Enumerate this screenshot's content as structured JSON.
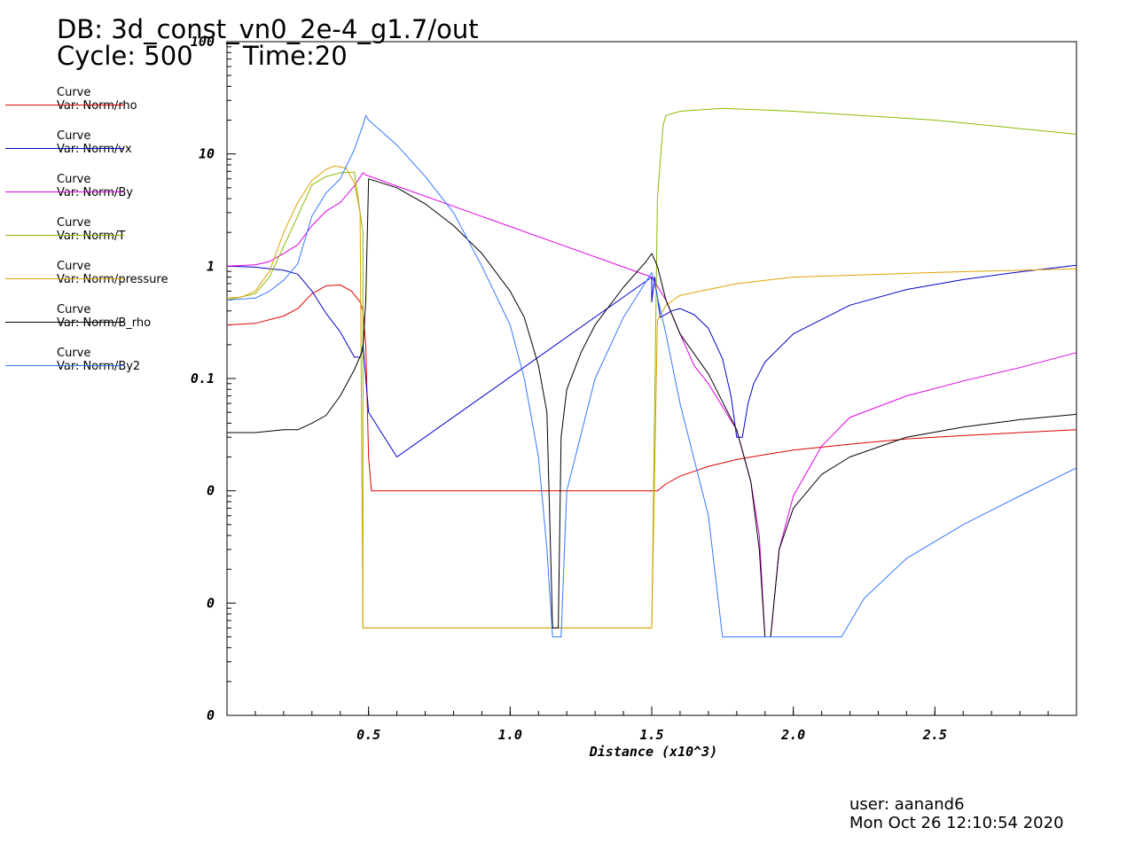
{
  "header": {
    "db_line": "DB: 3d_const_vn0_2e-4_g1.7/out",
    "cycle_line": "Cycle: 500",
    "time_line": "Time:20"
  },
  "footer": {
    "user": "user: aanand6",
    "date": "Mon Oct 26 12:10:54 2020"
  },
  "legend": [
    {
      "line1": "Curve",
      "line2": "Var: Norm/rho",
      "color": "#e00000"
    },
    {
      "line1": "Curve",
      "line2": "Var: Norm/vx",
      "color": "#0000cc"
    },
    {
      "line1": "Curve",
      "line2": "Var: Norm/By",
      "color": "#e000e0"
    },
    {
      "line1": "Curve",
      "line2": "Var: Norm/T",
      "color": "#88bb00"
    },
    {
      "line1": "Curve",
      "line2": "Var: Norm/pressure",
      "color": "#e0a000"
    },
    {
      "line1": "Curve",
      "line2": "Var: Norm/B_rho",
      "color": "#000000"
    },
    {
      "line1": "Curve",
      "line2": "Var: Norm/By2",
      "color": "#3377ff"
    }
  ],
  "chart_data": {
    "type": "line",
    "xlabel": "Distance (x10^3)",
    "ylabel": "",
    "xlim": [
      0,
      3.0
    ],
    "y_scale": "log",
    "xticks": [
      0.5,
      1.0,
      1.5,
      2.0,
      2.5
    ],
    "xtick_labels": [
      "0.5",
      "1.0",
      "1.5",
      "2.0",
      "2.5"
    ],
    "ytick_labels": [
      "0",
      "0",
      "0",
      "0.1",
      "1",
      "10",
      "100"
    ],
    "ytick_exponents": [
      -4,
      -3,
      -2,
      -1,
      0,
      1,
      2
    ],
    "grid": false,
    "series": [
      {
        "name": "Norm/rho",
        "color": "#e00000",
        "points": [
          [
            0,
            0.3
          ],
          [
            0.1,
            0.31
          ],
          [
            0.2,
            0.36
          ],
          [
            0.25,
            0.42
          ],
          [
            0.3,
            0.57
          ],
          [
            0.35,
            0.67
          ],
          [
            0.4,
            0.68
          ],
          [
            0.44,
            0.6
          ],
          [
            0.47,
            0.48
          ],
          [
            0.48,
            0.4
          ],
          [
            0.49,
            0.2
          ],
          [
            0.5,
            0.02
          ],
          [
            0.51,
            0.01
          ],
          [
            0.6,
            0.01
          ],
          [
            0.8,
            0.01
          ],
          [
            1.0,
            0.01
          ],
          [
            1.2,
            0.01
          ],
          [
            1.4,
            0.01
          ],
          [
            1.52,
            0.01
          ],
          [
            1.55,
            0.0115
          ],
          [
            1.6,
            0.0135
          ],
          [
            1.7,
            0.0165
          ],
          [
            1.8,
            0.019
          ],
          [
            1.9,
            0.021
          ],
          [
            2.0,
            0.023
          ],
          [
            2.2,
            0.026
          ],
          [
            2.4,
            0.029
          ],
          [
            2.6,
            0.031
          ],
          [
            2.8,
            0.033
          ],
          [
            3.0,
            0.035
          ]
        ]
      },
      {
        "name": "Norm/vx",
        "color": "#0000cc",
        "points": [
          [
            0,
            1.0
          ],
          [
            0.1,
            0.98
          ],
          [
            0.2,
            0.92
          ],
          [
            0.25,
            0.85
          ],
          [
            0.3,
            0.6
          ],
          [
            0.35,
            0.38
          ],
          [
            0.4,
            0.26
          ],
          [
            0.45,
            0.155
          ],
          [
            0.47,
            0.155
          ],
          [
            0.48,
            0.2
          ],
          [
            0.5,
            0.05
          ],
          [
            0.6,
            0.02
          ],
          [
            1.5,
            0.8
          ],
          [
            1.5,
            0.48
          ],
          [
            1.51,
            0.8
          ],
          [
            1.53,
            0.35
          ],
          [
            1.57,
            0.4
          ],
          [
            1.6,
            0.42
          ],
          [
            1.65,
            0.37
          ],
          [
            1.7,
            0.28
          ],
          [
            1.75,
            0.15
          ],
          [
            1.78,
            0.07
          ],
          [
            1.8,
            0.03
          ],
          [
            1.82,
            0.03
          ],
          [
            1.84,
            0.06
          ],
          [
            1.86,
            0.09
          ],
          [
            1.9,
            0.14
          ],
          [
            2.0,
            0.25
          ],
          [
            2.2,
            0.45
          ],
          [
            2.4,
            0.62
          ],
          [
            2.6,
            0.76
          ],
          [
            2.8,
            0.89
          ],
          [
            3.0,
            1.02
          ]
        ]
      },
      {
        "name": "Norm/By",
        "color": "#e000e0",
        "points": [
          [
            0,
            1.0
          ],
          [
            0.1,
            1.03
          ],
          [
            0.15,
            1.1
          ],
          [
            0.2,
            1.3
          ],
          [
            0.25,
            1.55
          ],
          [
            0.3,
            2.3
          ],
          [
            0.35,
            3.1
          ],
          [
            0.4,
            3.7
          ],
          [
            0.45,
            5.2
          ],
          [
            0.48,
            6.8
          ],
          [
            0.49,
            6.5
          ],
          [
            1.5,
            0.8
          ],
          [
            1.55,
            0.5
          ],
          [
            1.6,
            0.25
          ],
          [
            1.65,
            0.13
          ],
          [
            1.7,
            0.09
          ],
          [
            1.8,
            0.035
          ],
          [
            1.85,
            0.012
          ],
          [
            1.88,
            0.004
          ],
          [
            1.9,
            0.0005
          ],
          [
            1.92,
            0.0005
          ],
          [
            1.95,
            0.003
          ],
          [
            2.0,
            0.009
          ],
          [
            2.1,
            0.025
          ],
          [
            2.2,
            0.045
          ],
          [
            2.4,
            0.07
          ],
          [
            2.6,
            0.095
          ],
          [
            2.8,
            0.125
          ],
          [
            3.0,
            0.17
          ]
        ]
      },
      {
        "name": "Norm/T",
        "color": "#88bb00",
        "points": [
          [
            0,
            0.5
          ],
          [
            0.1,
            0.57
          ],
          [
            0.15,
            0.8
          ],
          [
            0.2,
            1.5
          ],
          [
            0.25,
            2.8
          ],
          [
            0.3,
            5.3
          ],
          [
            0.35,
            6.3
          ],
          [
            0.4,
            6.8
          ],
          [
            0.45,
            6.9
          ],
          [
            0.48,
            2.0
          ],
          [
            0.48,
            0.0006
          ],
          [
            0.5,
            0.0006
          ],
          [
            1.5,
            0.0006
          ],
          [
            1.52,
            4.0
          ],
          [
            1.54,
            18
          ],
          [
            1.55,
            22
          ],
          [
            1.6,
            24
          ],
          [
            1.75,
            25.5
          ],
          [
            2.0,
            24
          ],
          [
            2.5,
            20
          ],
          [
            3.0,
            15
          ]
        ]
      },
      {
        "name": "Norm/pressure",
        "color": "#e0a000",
        "points": [
          [
            0,
            0.52
          ],
          [
            0.05,
            0.53
          ],
          [
            0.1,
            0.6
          ],
          [
            0.15,
            0.9
          ],
          [
            0.2,
            2.0
          ],
          [
            0.25,
            3.7
          ],
          [
            0.3,
            5.8
          ],
          [
            0.35,
            7.3
          ],
          [
            0.38,
            7.8
          ],
          [
            0.42,
            7.5
          ],
          [
            0.45,
            5.5
          ],
          [
            0.47,
            3.0
          ],
          [
            0.48,
            0.0006
          ],
          [
            1.5,
            0.0006
          ],
          [
            1.52,
            0.33
          ],
          [
            1.55,
            0.45
          ],
          [
            1.6,
            0.55
          ],
          [
            1.8,
            0.7
          ],
          [
            2.0,
            0.8
          ],
          [
            2.5,
            0.88
          ],
          [
            3.0,
            0.95
          ]
        ]
      },
      {
        "name": "Norm/B_rho",
        "color": "#000000",
        "points": [
          [
            0,
            0.033
          ],
          [
            0.1,
            0.033
          ],
          [
            0.2,
            0.035
          ],
          [
            0.25,
            0.035
          ],
          [
            0.3,
            0.04
          ],
          [
            0.35,
            0.047
          ],
          [
            0.4,
            0.07
          ],
          [
            0.45,
            0.12
          ],
          [
            0.48,
            0.18
          ],
          [
            0.49,
            0.5
          ],
          [
            0.5,
            6.0
          ],
          [
            0.6,
            5.0
          ],
          [
            0.7,
            3.6
          ],
          [
            0.8,
            2.3
          ],
          [
            0.9,
            1.3
          ],
          [
            1.0,
            0.6
          ],
          [
            1.05,
            0.35
          ],
          [
            1.1,
            0.13
          ],
          [
            1.13,
            0.05
          ],
          [
            1.15,
            0.0006
          ],
          [
            1.17,
            0.0006
          ],
          [
            1.18,
            0.03
          ],
          [
            1.2,
            0.08
          ],
          [
            1.25,
            0.17
          ],
          [
            1.3,
            0.3
          ],
          [
            1.4,
            0.65
          ],
          [
            1.48,
            1.1
          ],
          [
            1.5,
            1.3
          ],
          [
            1.52,
            1.0
          ],
          [
            1.55,
            0.5
          ],
          [
            1.6,
            0.25
          ],
          [
            1.7,
            0.11
          ],
          [
            1.8,
            0.035
          ],
          [
            1.85,
            0.012
          ],
          [
            1.88,
            0.003
          ],
          [
            1.9,
            0.0005
          ],
          [
            1.92,
            0.0005
          ],
          [
            1.95,
            0.003
          ],
          [
            2.0,
            0.007
          ],
          [
            2.1,
            0.014
          ],
          [
            2.2,
            0.02
          ],
          [
            2.4,
            0.03
          ],
          [
            2.6,
            0.037
          ],
          [
            2.8,
            0.043
          ],
          [
            3.0,
            0.048
          ]
        ]
      },
      {
        "name": "Norm/By2",
        "color": "#3377ff",
        "points": [
          [
            0,
            0.5
          ],
          [
            0.1,
            0.52
          ],
          [
            0.15,
            0.6
          ],
          [
            0.2,
            0.75
          ],
          [
            0.25,
            1.05
          ],
          [
            0.3,
            2.8
          ],
          [
            0.35,
            4.5
          ],
          [
            0.4,
            6.0
          ],
          [
            0.45,
            11
          ],
          [
            0.48,
            18
          ],
          [
            0.49,
            22
          ],
          [
            0.5,
            20
          ],
          [
            0.6,
            12
          ],
          [
            0.7,
            6.3
          ],
          [
            0.8,
            3.0
          ],
          [
            0.9,
            1.0
          ],
          [
            1.0,
            0.3
          ],
          [
            1.05,
            0.1
          ],
          [
            1.1,
            0.02
          ],
          [
            1.13,
            0.003
          ],
          [
            1.15,
            0.0005
          ],
          [
            1.18,
            0.0005
          ],
          [
            1.2,
            0.01
          ],
          [
            1.3,
            0.1
          ],
          [
            1.4,
            0.35
          ],
          [
            1.5,
            0.88
          ],
          [
            1.55,
            0.25
          ],
          [
            1.6,
            0.06
          ],
          [
            1.7,
            0.006
          ],
          [
            1.75,
            0.0005
          ],
          [
            2.17,
            0.0005
          ],
          [
            2.25,
            0.0011
          ],
          [
            2.4,
            0.0025
          ],
          [
            2.6,
            0.005
          ],
          [
            2.8,
            0.009
          ],
          [
            3.0,
            0.016
          ]
        ]
      }
    ]
  }
}
